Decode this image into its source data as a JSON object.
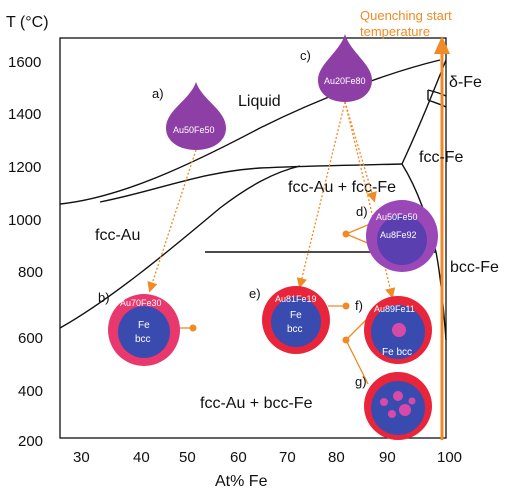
{
  "axes": {
    "y_title": "T (°C)",
    "x_title": "At% Fe",
    "y_ticks": [
      "1600",
      "1400",
      "1200",
      "1000",
      "800",
      "600",
      "400",
      "200"
    ],
    "x_ticks": [
      "30",
      "40",
      "50",
      "60",
      "70",
      "80",
      "90",
      "100"
    ]
  },
  "regions": {
    "liquid": "Liquid",
    "delta_fe": "δ-Fe",
    "fcc_fe": "fcc-Fe",
    "fcc_au_fcc_fe": "fcc-Au + fcc-Fe",
    "fcc_au": "fcc-Au",
    "bcc_fe": "bcc-Fe",
    "fcc_au_bcc_fe": "fcc-Au + bcc-Fe"
  },
  "quench": {
    "line1": "Quenching start",
    "line2": "temperature"
  },
  "samples": {
    "a": {
      "letter": "a)",
      "composition": "Au50Fe50"
    },
    "b": {
      "letter": "b)",
      "composition": "Au70Fe30",
      "inner1": "Fe",
      "inner2": "bcc"
    },
    "c": {
      "letter": "c)",
      "composition": "Au20Fe80"
    },
    "d": {
      "letter": "d)",
      "composition1": "Au50Fe50",
      "composition2": "Au8Fe92"
    },
    "e": {
      "letter": "e)",
      "composition": "Au81Fe19",
      "inner1": "Fe",
      "inner2": "bcc"
    },
    "f": {
      "letter": "f)",
      "composition": "Au89Fe11",
      "inner": "Fe  bcc"
    },
    "g": {
      "letter": "g)"
    }
  },
  "colors": {
    "drop": "#8e3fa6",
    "shell_red": "#e8253a",
    "shell_pink": "#e8386e",
    "core_blue": "#3a4bb0",
    "core_purple": "#9a48b8",
    "inclusion": "#d94aa8",
    "arrow_orange": "#f08a24"
  }
}
